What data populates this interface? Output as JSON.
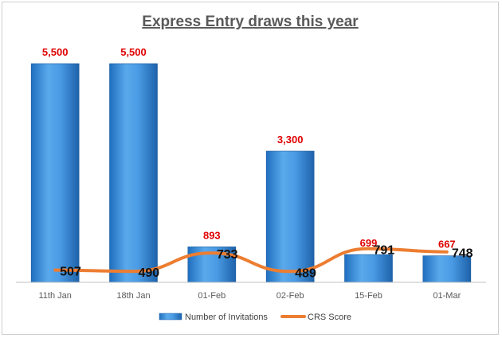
{
  "chart_data": {
    "type": "bar",
    "title": "Express Entry draws this year",
    "categories": [
      "11th Jan",
      "18th Jan",
      "01-Feb",
      "02-Feb",
      "15-Feb",
      "01-Mar"
    ],
    "series": [
      {
        "name": "Number of Invitations",
        "kind": "bar",
        "values": [
          5500,
          5500,
          893,
          3300,
          699,
          667
        ],
        "labels": [
          "5,500",
          "5,500",
          "893",
          "3,300",
          "699",
          "667"
        ],
        "color": "#3a8fd8",
        "label_color": "#e00000"
      },
      {
        "name": "CRS Score",
        "kind": "line",
        "values": [
          507,
          490,
          733,
          489,
          791,
          748
        ],
        "labels": [
          "507",
          "490",
          "733",
          "489",
          "791",
          "748"
        ],
        "color": "#ed7d31",
        "label_color": "#111111"
      }
    ],
    "ylim": [
      0,
      5500
    ],
    "grid": false,
    "legend": "bottom"
  }
}
